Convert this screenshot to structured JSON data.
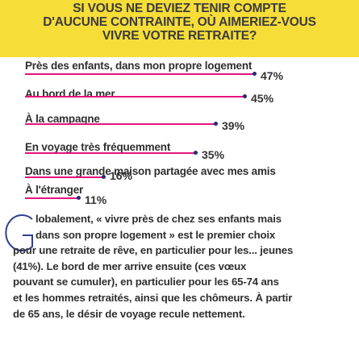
{
  "header": {
    "title_lines": [
      "SI VOUS NE DEVIEZ TENIR COMPTE",
      "D'AUCUNE CONTRAINTE, OÙ AIMERIEZ-VOUS",
      "VIVRE VOTRE RETRAITE?"
    ],
    "background_color": "#f6dd38"
  },
  "chart_data": {
    "type": "bar",
    "title": "SI VOUS NE DEVIEZ TENIR COMPTE D'AUCUNE CONTRAINTE, OÙ AIMERIEZ-VOUS VIVRE VOTRE RETRAITE?",
    "categories": [
      "Près des enfants, dans mon propre logement",
      "Au bord de la mer",
      "À la campagne",
      "En voyage très fréquemment",
      "Dans une grande maison partagée avec mes amis",
      "À l'étranger"
    ],
    "values": [
      47,
      45,
      39,
      35,
      16,
      11
    ],
    "value_labels": [
      "47%",
      "45%",
      "39%",
      "35%",
      "16%",
      "11%"
    ],
    "unit": "%",
    "ylim": [
      0,
      47
    ],
    "bar_color": "#e5127d",
    "dot_color": "#1f2d7a"
  },
  "article": {
    "dropcap": "G",
    "lines": [
      "lobalement, « vivre près de chez ses enfants mais",
      "dans son propre logement » est le premier choix",
      "pour une retraite de rêve, en particulier pour les... jeunes",
      "(41%). Le bord de mer arrive ensuite (ces vœux",
      "pouvant se cumuler), en particulier pour les 65-74 ans",
      "et les hommes retraités, ainsi que les chômeurs. À partir",
      "de 65 ans, le désir de voyage recule nettement."
    ]
  }
}
